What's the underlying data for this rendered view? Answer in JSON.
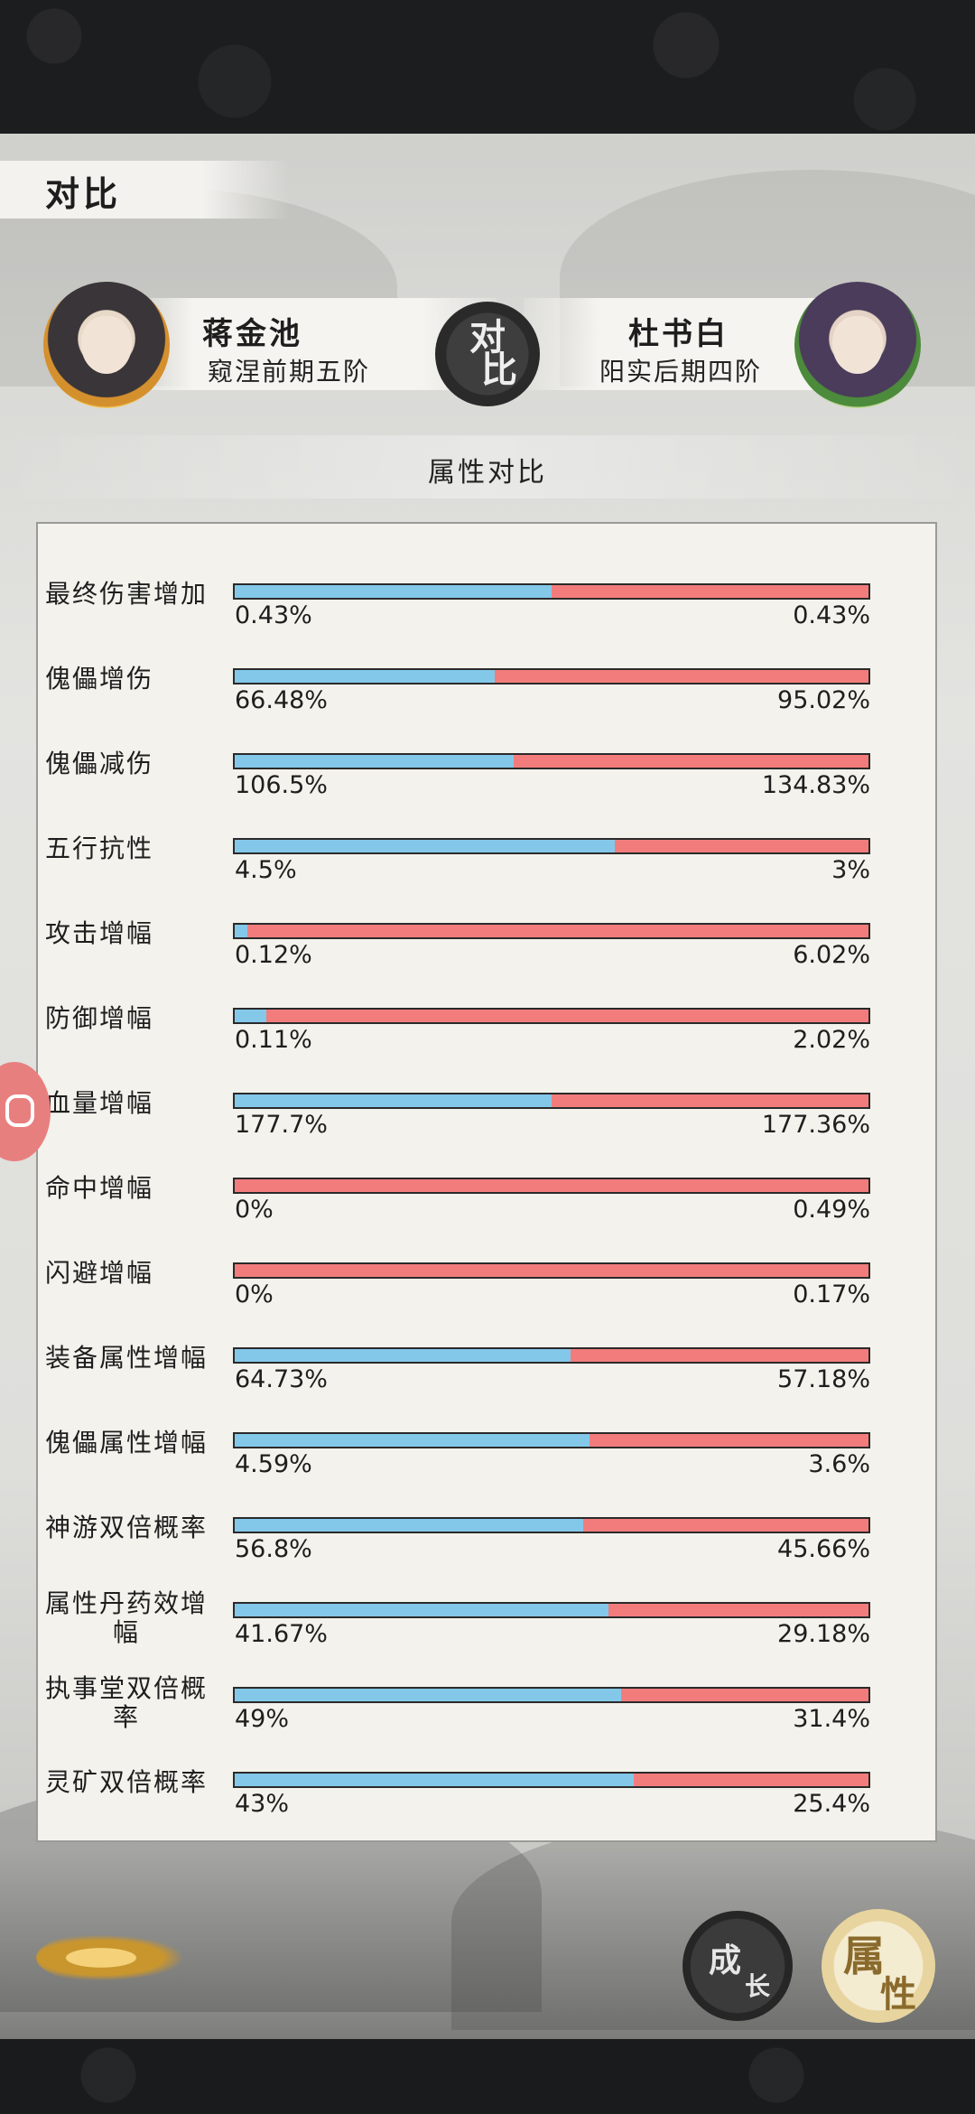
{
  "header": {
    "title": "对比"
  },
  "players": {
    "left": {
      "name": "蒋金池",
      "rank": "窥涅前期五阶"
    },
    "right": {
      "name": "杜书白",
      "rank": "阳实后期四阶"
    }
  },
  "vs_badge": {
    "line1": "对",
    "line2": "比"
  },
  "section": {
    "title": "属性对比"
  },
  "colors": {
    "left_bar": "#83c8e9",
    "right_bar": "#f27c7c"
  },
  "attributes": [
    {
      "label": "最终伤害增加",
      "left": "0.43%",
      "right": "0.43%",
      "left_share": 0.5
    },
    {
      "label": "傀儡增伤",
      "left": "66.48%",
      "right": "95.02%",
      "left_share": 0.41
    },
    {
      "label": "傀儡减伤",
      "left": "106.5%",
      "right": "134.83%",
      "left_share": 0.44
    },
    {
      "label": "五行抗性",
      "left": "4.5%",
      "right": "3%",
      "left_share": 0.6
    },
    {
      "label": "攻击增幅",
      "left": "0.12%",
      "right": "6.02%",
      "left_share": 0.02
    },
    {
      "label": "防御增幅",
      "left": "0.11%",
      "right": "2.02%",
      "left_share": 0.05
    },
    {
      "label": "血量增幅",
      "left": "177.7%",
      "right": "177.36%",
      "left_share": 0.5
    },
    {
      "label": "命中增幅",
      "left": "0%",
      "right": "0.49%",
      "left_share": 0
    },
    {
      "label": "闪避增幅",
      "left": "0%",
      "right": "0.17%",
      "left_share": 0
    },
    {
      "label": "装备属性增幅",
      "left": "64.73%",
      "right": "57.18%",
      "left_share": 0.53
    },
    {
      "label": "傀儡属性增幅",
      "left": "4.59%",
      "right": "3.6%",
      "left_share": 0.56
    },
    {
      "label": "神游双倍概率",
      "left": "56.8%",
      "right": "45.66%",
      "left_share": 0.55
    },
    {
      "label": "属性丹药效增幅",
      "left": "41.67%",
      "right": "29.18%",
      "left_share": 0.59
    },
    {
      "label": "执事堂双倍概率",
      "left": "49%",
      "right": "31.4%",
      "left_share": 0.61
    },
    {
      "label": "灵矿双倍概率",
      "left": "43%",
      "right": "25.4%",
      "left_share": 0.63
    }
  ],
  "nav": {
    "growth_1": "成",
    "growth_2": "长",
    "attr_1": "属",
    "attr_2": "性"
  },
  "side_float_icon": "gamepad-icon"
}
